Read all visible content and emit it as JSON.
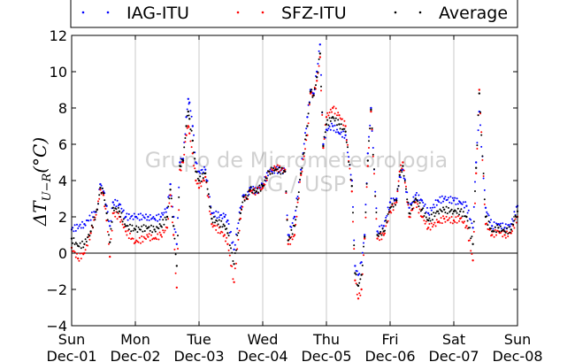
{
  "chart_data": {
    "type": "scatter",
    "title": "",
    "xlabel": "",
    "ylabel": "ΔT_{U−R} (°C)",
    "ylabel_main": "ΔT",
    "ylabel_sub": "U−R",
    "ylabel_unit": "(°C)",
    "ylim": [
      -4,
      12
    ],
    "yticks": [
      -4,
      -2,
      0,
      2,
      4,
      6,
      8,
      10,
      12
    ],
    "xlim_days": [
      0,
      7
    ],
    "xtick_labels": [
      {
        "day": "Sun",
        "date": "Dec-01"
      },
      {
        "day": "Mon",
        "date": "Dec-02"
      },
      {
        "day": "Tue",
        "date": "Dec-03"
      },
      {
        "day": "Wed",
        "date": "Dec-04"
      },
      {
        "day": "Thu",
        "date": "Dec-05"
      },
      {
        "day": "Fri",
        "date": "Dec-06"
      },
      {
        "day": "Sat",
        "date": "Dec-07"
      },
      {
        "day": "Sun",
        "date": "Dec-08"
      }
    ],
    "grid": "vertical",
    "legend_position": "top",
    "watermark": [
      "Grupo de Micrometeorologia",
      "IAG / USP"
    ],
    "series": [
      {
        "name": "IAG-ITU",
        "color": "#0000ff",
        "points": [
          [
            0.0,
            1.3
          ],
          [
            0.2,
            1.6
          ],
          [
            0.4,
            2.4
          ],
          [
            0.45,
            3.8
          ],
          [
            0.5,
            3.4
          ],
          [
            0.55,
            2.6
          ],
          [
            0.6,
            1.5
          ],
          [
            0.65,
            2.8
          ],
          [
            0.75,
            2.7
          ],
          [
            0.85,
            2.0
          ],
          [
            1.0,
            2.0
          ],
          [
            1.2,
            2.0
          ],
          [
            1.3,
            1.9
          ],
          [
            1.4,
            2.0
          ],
          [
            1.5,
            2.5
          ],
          [
            1.55,
            3.8
          ],
          [
            1.6,
            2.0
          ],
          [
            1.65,
            0.5
          ],
          [
            1.7,
            5.0
          ],
          [
            1.75,
            5.2
          ],
          [
            1.8,
            7.5
          ],
          [
            1.83,
            8.5
          ],
          [
            1.85,
            8.3
          ],
          [
            1.9,
            7.0
          ],
          [
            1.95,
            5.0
          ],
          [
            2.0,
            4.5
          ],
          [
            2.1,
            4.6
          ],
          [
            2.2,
            2.2
          ],
          [
            2.4,
            2.0
          ],
          [
            2.45,
            1.8
          ],
          [
            2.55,
            0.2
          ],
          [
            2.65,
            2.5
          ],
          [
            2.7,
            3.2
          ],
          [
            2.75,
            3.0
          ],
          [
            2.8,
            3.6
          ],
          [
            2.9,
            3.4
          ],
          [
            3.0,
            3.8
          ],
          [
            3.1,
            4.5
          ],
          [
            3.2,
            4.6
          ],
          [
            3.35,
            4.5
          ],
          [
            3.4,
            1.0
          ],
          [
            3.5,
            2.0
          ],
          [
            3.6,
            4.6
          ],
          [
            3.7,
            7.5
          ],
          [
            3.75,
            9.0
          ],
          [
            3.8,
            8.8
          ],
          [
            3.85,
            10.0
          ],
          [
            3.9,
            11.5
          ],
          [
            3.95,
            6.0
          ],
          [
            4.0,
            6.8
          ],
          [
            4.1,
            7.0
          ],
          [
            4.2,
            6.6
          ],
          [
            4.3,
            6.5
          ],
          [
            4.4,
            4.0
          ],
          [
            4.45,
            -0.7
          ],
          [
            4.5,
            -1.2
          ],
          [
            4.55,
            -0.5
          ],
          [
            4.6,
            1.0
          ],
          [
            4.65,
            5.5
          ],
          [
            4.7,
            8.0
          ],
          [
            4.8,
            1.2
          ],
          [
            4.9,
            1.5
          ],
          [
            5.0,
            2.8
          ],
          [
            5.1,
            3.0
          ],
          [
            5.15,
            4.2
          ],
          [
            5.2,
            4.6
          ],
          [
            5.3,
            2.5
          ],
          [
            5.4,
            3.2
          ],
          [
            5.5,
            2.9
          ],
          [
            5.6,
            2.2
          ],
          [
            5.75,
            2.9
          ],
          [
            5.85,
            3.0
          ],
          [
            6.0,
            2.9
          ],
          [
            6.1,
            2.8
          ],
          [
            6.2,
            2.6
          ],
          [
            6.3,
            1.4
          ],
          [
            6.35,
            5.0
          ],
          [
            6.4,
            7.8
          ],
          [
            6.5,
            2.5
          ],
          [
            6.6,
            1.5
          ],
          [
            6.7,
            1.6
          ],
          [
            6.8,
            1.4
          ],
          [
            6.9,
            1.6
          ],
          [
            7.0,
            2.6
          ]
        ]
      },
      {
        "name": "SFZ-ITU",
        "color": "#ff0000",
        "points": [
          [
            0.0,
            0.3
          ],
          [
            0.1,
            -0.3
          ],
          [
            0.2,
            0.0
          ],
          [
            0.3,
            1.1
          ],
          [
            0.4,
            2.4
          ],
          [
            0.45,
            3.5
          ],
          [
            0.5,
            3.2
          ],
          [
            0.55,
            1.8
          ],
          [
            0.6,
            -0.2
          ],
          [
            0.65,
            2.2
          ],
          [
            0.75,
            2.0
          ],
          [
            0.85,
            1.2
          ],
          [
            1.0,
            0.6
          ],
          [
            1.2,
            0.9
          ],
          [
            1.3,
            0.8
          ],
          [
            1.4,
            1.0
          ],
          [
            1.5,
            1.4
          ],
          [
            1.55,
            3.2
          ],
          [
            1.6,
            1.0
          ],
          [
            1.65,
            -1.9
          ],
          [
            1.7,
            4.6
          ],
          [
            1.75,
            5.0
          ],
          [
            1.8,
            6.5
          ],
          [
            1.83,
            7.0
          ],
          [
            1.85,
            6.6
          ],
          [
            1.9,
            5.5
          ],
          [
            1.95,
            4.0
          ],
          [
            2.0,
            3.6
          ],
          [
            2.1,
            4.2
          ],
          [
            2.2,
            1.6
          ],
          [
            2.4,
            1.0
          ],
          [
            2.45,
            0.5
          ],
          [
            2.55,
            -1.6
          ],
          [
            2.65,
            1.9
          ],
          [
            2.7,
            3.1
          ],
          [
            2.75,
            3.0
          ],
          [
            2.8,
            3.4
          ],
          [
            2.9,
            3.4
          ],
          [
            3.0,
            3.6
          ],
          [
            3.1,
            4.5
          ],
          [
            3.2,
            4.7
          ],
          [
            3.35,
            4.6
          ],
          [
            3.4,
            0.5
          ],
          [
            3.5,
            1.0
          ],
          [
            3.6,
            4.3
          ],
          [
            3.7,
            6.5
          ],
          [
            3.75,
            8.8
          ],
          [
            3.8,
            8.7
          ],
          [
            3.85,
            9.5
          ],
          [
            3.9,
            10.8
          ],
          [
            3.95,
            5.8
          ],
          [
            4.0,
            7.5
          ],
          [
            4.1,
            8.0
          ],
          [
            4.2,
            7.6
          ],
          [
            4.3,
            7.0
          ],
          [
            4.4,
            3.4
          ],
          [
            4.45,
            -1.5
          ],
          [
            4.5,
            -2.5
          ],
          [
            4.55,
            -2.0
          ],
          [
            4.6,
            0.8
          ],
          [
            4.65,
            4.8
          ],
          [
            4.7,
            7.8
          ],
          [
            4.8,
            0.8
          ],
          [
            4.9,
            1.0
          ],
          [
            5.0,
            2.3
          ],
          [
            5.1,
            2.8
          ],
          [
            5.15,
            4.5
          ],
          [
            5.2,
            5.0
          ],
          [
            5.3,
            2.0
          ],
          [
            5.4,
            2.8
          ],
          [
            5.5,
            2.0
          ],
          [
            5.6,
            1.4
          ],
          [
            5.75,
            1.7
          ],
          [
            5.85,
            1.9
          ],
          [
            6.0,
            1.8
          ],
          [
            6.1,
            1.9
          ],
          [
            6.2,
            1.5
          ],
          [
            6.3,
            -0.4
          ],
          [
            6.35,
            4.4
          ],
          [
            6.4,
            9.0
          ],
          [
            6.5,
            1.6
          ],
          [
            6.6,
            1.0
          ],
          [
            6.7,
            1.2
          ],
          [
            6.8,
            1.0
          ],
          [
            6.9,
            1.1
          ],
          [
            7.0,
            2.0
          ]
        ]
      },
      {
        "name": "Average",
        "color": "#000000",
        "points": [
          [
            0.0,
            0.8
          ],
          [
            0.1,
            0.4
          ],
          [
            0.2,
            0.5
          ],
          [
            0.3,
            1.2
          ],
          [
            0.4,
            2.4
          ],
          [
            0.45,
            3.6
          ],
          [
            0.5,
            3.3
          ],
          [
            0.55,
            2.2
          ],
          [
            0.6,
            0.6
          ],
          [
            0.65,
            2.5
          ],
          [
            0.75,
            2.3
          ],
          [
            0.85,
            1.5
          ],
          [
            1.0,
            1.3
          ],
          [
            1.2,
            1.4
          ],
          [
            1.3,
            1.3
          ],
          [
            1.4,
            1.5
          ],
          [
            1.5,
            2.0
          ],
          [
            1.55,
            3.5
          ],
          [
            1.6,
            1.5
          ],
          [
            1.65,
            -0.7
          ],
          [
            1.7,
            4.8
          ],
          [
            1.75,
            5.1
          ],
          [
            1.8,
            7.0
          ],
          [
            1.83,
            7.8
          ],
          [
            1.85,
            7.4
          ],
          [
            1.9,
            6.2
          ],
          [
            1.95,
            4.5
          ],
          [
            2.0,
            4.0
          ],
          [
            2.1,
            4.4
          ],
          [
            2.2,
            1.9
          ],
          [
            2.4,
            1.5
          ],
          [
            2.45,
            1.1
          ],
          [
            2.55,
            -0.6
          ],
          [
            2.65,
            2.2
          ],
          [
            2.7,
            3.1
          ],
          [
            2.75,
            3.0
          ],
          [
            2.8,
            3.5
          ],
          [
            2.9,
            3.4
          ],
          [
            3.0,
            3.7
          ],
          [
            3.1,
            4.5
          ],
          [
            3.2,
            4.6
          ],
          [
            3.35,
            4.5
          ],
          [
            3.4,
            0.7
          ],
          [
            3.5,
            1.5
          ],
          [
            3.6,
            4.4
          ],
          [
            3.7,
            7.0
          ],
          [
            3.75,
            8.9
          ],
          [
            3.8,
            8.7
          ],
          [
            3.85,
            9.7
          ],
          [
            3.9,
            11.0
          ],
          [
            3.95,
            5.9
          ],
          [
            4.0,
            7.1
          ],
          [
            4.1,
            7.5
          ],
          [
            4.2,
            7.1
          ],
          [
            4.3,
            6.7
          ],
          [
            4.4,
            3.7
          ],
          [
            4.45,
            -1.1
          ],
          [
            4.5,
            -1.8
          ],
          [
            4.55,
            -1.2
          ],
          [
            4.6,
            0.9
          ],
          [
            4.65,
            5.1
          ],
          [
            4.7,
            7.9
          ],
          [
            4.8,
            1.0
          ],
          [
            4.9,
            1.2
          ],
          [
            5.0,
            2.5
          ],
          [
            5.1,
            2.9
          ],
          [
            5.15,
            4.3
          ],
          [
            5.2,
            4.8
          ],
          [
            5.3,
            2.2
          ],
          [
            5.4,
            3.0
          ],
          [
            5.5,
            2.4
          ],
          [
            5.6,
            1.8
          ],
          [
            5.75,
            2.3
          ],
          [
            5.85,
            2.4
          ],
          [
            6.0,
            2.3
          ],
          [
            6.1,
            2.3
          ],
          [
            6.2,
            2.0
          ],
          [
            6.3,
            0.5
          ],
          [
            6.35,
            4.7
          ],
          [
            6.4,
            8.8
          ],
          [
            6.5,
            2.0
          ],
          [
            6.6,
            1.2
          ],
          [
            6.7,
            1.4
          ],
          [
            6.8,
            1.2
          ],
          [
            6.9,
            1.3
          ],
          [
            7.0,
            2.3
          ]
        ]
      }
    ]
  }
}
